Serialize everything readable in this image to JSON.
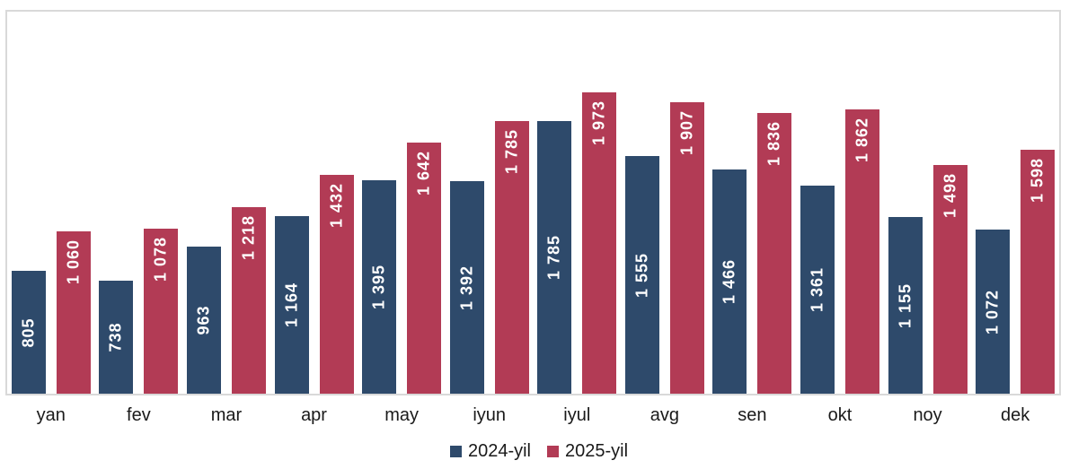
{
  "chart_data": {
    "type": "bar",
    "title": "",
    "xlabel": "",
    "ylabel": "",
    "categories": [
      "yan",
      "fev",
      "mar",
      "apr",
      "may",
      "iyun",
      "iyul",
      "avg",
      "sen",
      "okt",
      "noy",
      "dek"
    ],
    "series": [
      {
        "name": "2024-yil",
        "color": "#2e4a6b",
        "values": [
          805,
          738,
          963,
          1164,
          1395,
          1392,
          1785,
          1555,
          1466,
          1361,
          1155,
          1072
        ],
        "labels": [
          "805",
          "738",
          "963",
          "1 164",
          "1 395",
          "1 392",
          "1 785",
          "1 555",
          "1 466",
          "1 361",
          "1 155",
          "1 072"
        ],
        "label_position": "center"
      },
      {
        "name": "2025-yil",
        "color": "#b23b55",
        "values": [
          1060,
          1078,
          1218,
          1432,
          1642,
          1785,
          1973,
          1907,
          1836,
          1862,
          1498,
          1598
        ],
        "labels": [
          "1 060",
          "1 078",
          "1 218",
          "1 432",
          "1 642",
          "1 785",
          "1 973",
          "1 907",
          "1 836",
          "1 862",
          "1 498",
          "1 598"
        ],
        "label_position": "top"
      }
    ],
    "ylim": [
      0,
      2500
    ],
    "grid": false,
    "legend_position": "bottom",
    "data_label_color": "#ffffff",
    "plot_border_color": "#d9d9d9"
  }
}
